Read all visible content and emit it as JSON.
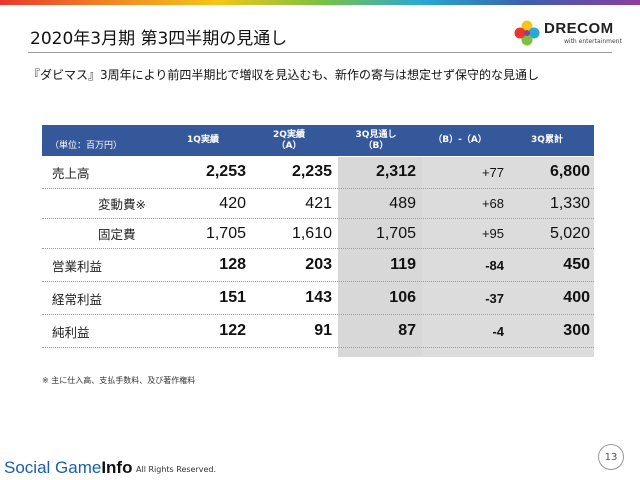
{
  "slide": {
    "title": "2020年3月期 第3四半期の見通し",
    "subtitle": "『ダビマス』3周年により前四半期比で増収を見込むも、新作の寄与は想定せず保守的な見通し",
    "page_number": "13",
    "note": "※ 主に仕入高、支払手数料、及び著作権料"
  },
  "logo": {
    "wordmark": "DRECOM",
    "tagline": "with entertainment",
    "colors": [
      "#e8382e",
      "#f5c518",
      "#7cc242",
      "#2aa7d6",
      "#8b3fa0"
    ]
  },
  "table": {
    "header": {
      "unit": "（単位：百万円）",
      "col1": "1Q実績",
      "col2_line1": "2Q実績",
      "col2_line2": "（A）",
      "col3_line1": "3Q見通し",
      "col3_line2": "（B）",
      "col4": "（B）-（A）",
      "col5": "3Q累計"
    },
    "rows": [
      {
        "label": "売上高",
        "q1": "2,253",
        "q2": "2,235",
        "q3": "2,312",
        "diff": "+77",
        "cum": "6,800"
      },
      {
        "label": "変動費※",
        "q1": "420",
        "q2": "421",
        "q3": "489",
        "diff": "+68",
        "cum": "1,330"
      },
      {
        "label": "固定費",
        "q1": "1,705",
        "q2": "1,610",
        "q3": "1,705",
        "diff": "+95",
        "cum": "5,020"
      },
      {
        "label": "営業利益",
        "q1": "128",
        "q2": "203",
        "q3": "119",
        "diff": "-84",
        "cum": "450"
      },
      {
        "label": "経常利益",
        "q1": "151",
        "q2": "143",
        "q3": "106",
        "diff": "-37",
        "cum": "400"
      },
      {
        "label": "純利益",
        "q1": "122",
        "q2": "91",
        "q3": "87",
        "diff": "-4",
        "cum": "300"
      }
    ]
  },
  "footer": {
    "brand_a": "Social Game",
    "brand_b": "Info",
    "copyright": "All Rights Reserved."
  },
  "colors": {
    "header_bg": "#35589b",
    "shade": "#d8d8d8",
    "footer_brand": "#1a5fa8"
  }
}
